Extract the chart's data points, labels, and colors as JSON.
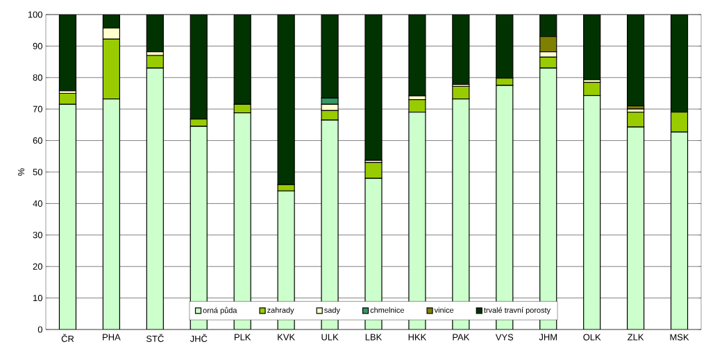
{
  "chart_data": {
    "type": "bar",
    "stacked": true,
    "ylabel": "%",
    "categories": [
      "ČR",
      "PHA",
      "STČ",
      "JHČ",
      "PLK",
      "KVK",
      "ULK",
      "LBK",
      "HKK",
      "PAK",
      "VYS",
      "JHM",
      "OLK",
      "ZLK",
      "MSK"
    ],
    "series": [
      {
        "name": "orná půda",
        "color": "#ccffcc",
        "values": [
          71.5,
          73.2,
          83,
          64.5,
          68.8,
          44,
          66.5,
          48,
          69,
          73.2,
          77.5,
          83,
          74.3,
          64.3,
          62.7
        ]
      },
      {
        "name": "zahrady",
        "color": "#99cc00",
        "values": [
          3.5,
          19,
          4,
          2.3,
          2.7,
          2,
          3,
          5,
          4,
          4,
          2.3,
          3.5,
          4.2,
          4.7,
          6.3
        ]
      },
      {
        "name": "sady",
        "color": "#ffffcc",
        "values": [
          0.8,
          3.5,
          1.2,
          null,
          null,
          null,
          2,
          0.7,
          1.2,
          0.6,
          null,
          1.7,
          0.8,
          1,
          null
        ]
      },
      {
        "name": "chmelnice",
        "color": "#339966",
        "values": [
          null,
          null,
          null,
          null,
          null,
          null,
          2,
          null,
          null,
          null,
          null,
          null,
          null,
          null,
          null
        ]
      },
      {
        "name": "vinice",
        "color": "#808000",
        "values": [
          null,
          null,
          null,
          null,
          null,
          null,
          null,
          null,
          null,
          null,
          null,
          4.8,
          null,
          1,
          null
        ]
      },
      {
        "name": "trvalé travní porosty",
        "color": "#003300",
        "values": [
          24.2,
          4.3,
          11.8,
          33.2,
          28.5,
          54,
          26.5,
          46.3,
          25.8,
          22.2,
          20.2,
          7,
          20.7,
          29,
          31
        ]
      }
    ],
    "ylim": [
      0,
      100
    ],
    "yticks": [
      0,
      10,
      20,
      30,
      40,
      50,
      60,
      70,
      80,
      90,
      100
    ],
    "grid": "y",
    "legend": "bottom"
  }
}
